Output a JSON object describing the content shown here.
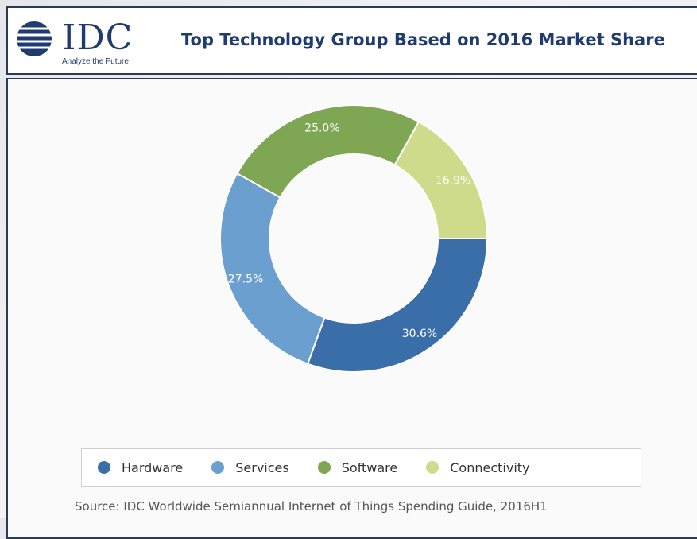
{
  "header": {
    "logo_text": "IDC",
    "logo_tagline": "Analyze the Future",
    "title": "Top Technology Group Based on 2016 Market Share"
  },
  "chart_data": {
    "type": "pie",
    "donut": true,
    "title": "Top Technology Group Based on 2016 Market Share",
    "categories": [
      "Hardware",
      "Services",
      "Software",
      "Connectivity"
    ],
    "values": [
      30.6,
      27.5,
      25.0,
      16.9
    ],
    "labels": [
      "30.6%",
      "27.5%",
      "25.0%",
      "16.9%"
    ],
    "colors": [
      "#3a6ea8",
      "#6a9fd0",
      "#7fa653",
      "#cddb8a"
    ],
    "legend_position": "bottom",
    "source": "Source: IDC Worldwide Semiannual Internet of Things Spending Guide, 2016H1"
  }
}
